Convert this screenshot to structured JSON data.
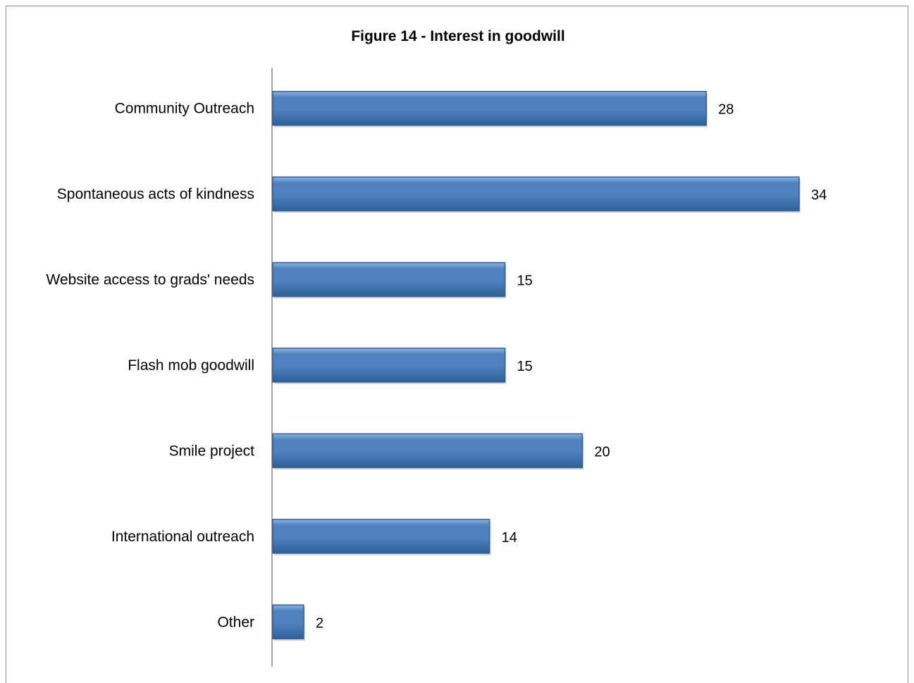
{
  "chart_data": {
    "type": "bar",
    "orientation": "horizontal",
    "title": "Figure 14 -  Interest in goodwill",
    "categories": [
      "Community Outreach",
      "Spontaneous acts of kindness",
      "Website access to grads' needs",
      "Flash mob goodwill",
      "Smile project",
      "International outreach",
      "Other"
    ],
    "values": [
      28,
      34,
      15,
      15,
      20,
      14,
      2
    ],
    "xlim": [
      0,
      34
    ],
    "grid": false,
    "legend": "none",
    "colors": {
      "bar": "#4f81bd",
      "bar_dark": "#2f5f97",
      "bar_light": "#8fb4e3",
      "axis": "#868686"
    }
  }
}
